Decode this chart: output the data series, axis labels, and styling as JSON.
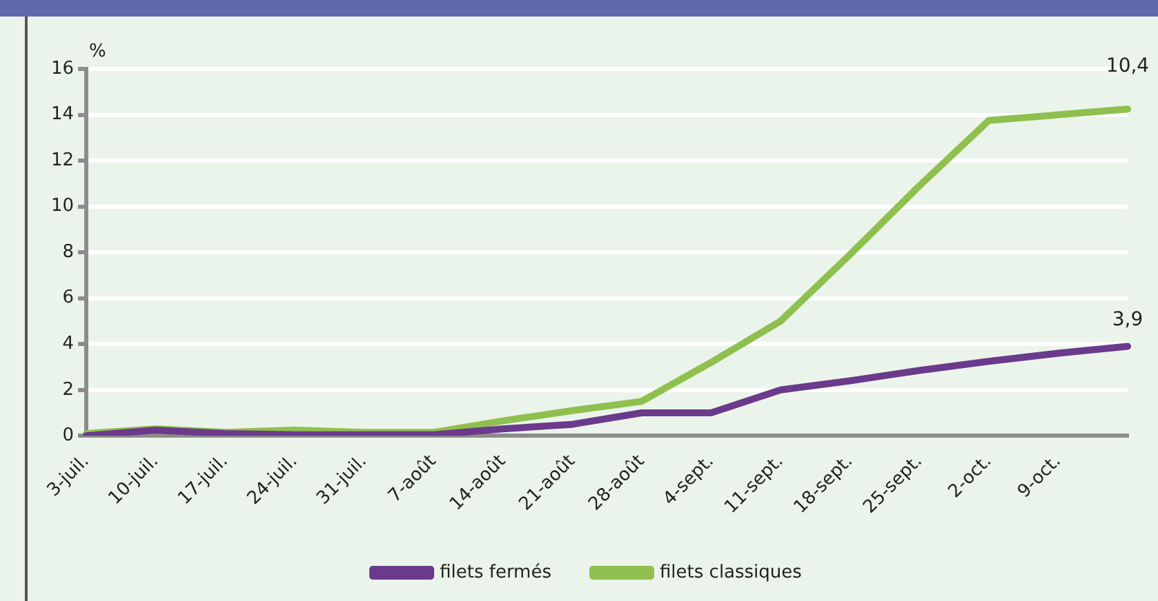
{
  "chart_data": {
    "type": "line",
    "ylabel": "%",
    "categories": [
      "3-juil.",
      "10-juil.",
      "17-juil.",
      "24-juil.",
      "31-juil.",
      "7-août",
      "14-août",
      "21-août",
      "28-août",
      "4-sept.",
      "11-sept.",
      "18-sept.",
      "25-sept.",
      "2-oct.",
      "9-oct.",
      null
    ],
    "series": [
      {
        "name": "filets fermés",
        "color": "#6b3a8c",
        "values": [
          0,
          0.25,
          0.1,
          0.05,
          0.05,
          0.05,
          0.3,
          0.5,
          1.0,
          1.0,
          2.0,
          2.4,
          2.85,
          3.25,
          3.6,
          3.9
        ],
        "value_labels": [
          null,
          null,
          null,
          null,
          null,
          null,
          null,
          null,
          null,
          null,
          null,
          null,
          null,
          null,
          null,
          "3,9"
        ]
      },
      {
        "name": "filets classiques",
        "color": "#8fc04f",
        "values": [
          0.1,
          0.3,
          0.15,
          0.25,
          0.15,
          0.15,
          0.65,
          1.1,
          1.5,
          3.2,
          5.0,
          7.9,
          10.9,
          13.75,
          14.0,
          14.25
        ]
      }
    ],
    "annotations": [
      {
        "text": "10,4",
        "y": 14.25
      }
    ],
    "ylim": [
      0,
      16
    ],
    "yticks": [
      0,
      2,
      4,
      6,
      8,
      10,
      12,
      14,
      16
    ],
    "grid": "y",
    "legend": "bottom",
    "marker": "none",
    "line_style": "solid"
  }
}
